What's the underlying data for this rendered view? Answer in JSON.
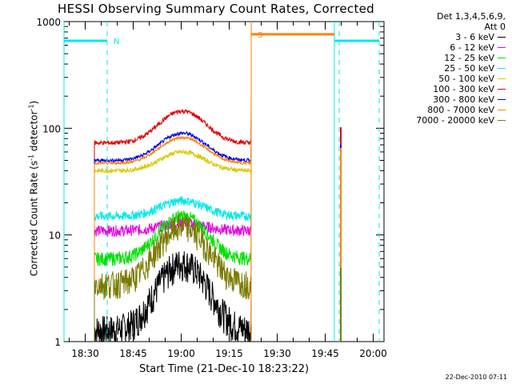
{
  "chart_data": {
    "type": "line",
    "title": "HESSI Observing Summary Count Rates, Corrected",
    "xlabel": "Start Time (21-Dec-10 18:23:22)",
    "ylabel_main": "Corrected Count Rate (s",
    "ylabel_sup1": "-1",
    "ylabel_mid": " detector",
    "ylabel_sup2": "-1",
    "ylabel_end": ")",
    "yscale": "log",
    "ylim": [
      1,
      1000
    ],
    "xlim_minutes": [
      0,
      100
    ],
    "y_tick_labels": [
      "1",
      "10",
      "100",
      "1000"
    ],
    "y_tick_values": [
      1,
      10,
      100,
      1000
    ],
    "x_tick_labels": [
      "18:30",
      "18:45",
      "19:00",
      "19:15",
      "19:30",
      "19:45",
      "20:00"
    ],
    "x_tick_minutes": [
      6.63,
      21.63,
      36.63,
      51.63,
      66.63,
      81.63,
      96.63
    ],
    "legend_header": [
      "Det 1,3,4,5,6,9,",
      "Att 0"
    ],
    "series": [
      {
        "name": "3 - 6 keV",
        "color": "#000000",
        "baseline": 1.3,
        "peak": 5.5,
        "noise": 0.35
      },
      {
        "name": "6 - 12 keV",
        "color": "#e000e0",
        "baseline": 11,
        "peak": 13,
        "noise": 0.12
      },
      {
        "name": "12 - 25 keV",
        "color": "#00e000",
        "baseline": 6,
        "peak": 15,
        "noise": 0.15
      },
      {
        "name": "25 - 50 keV",
        "color": "#00e8e8",
        "baseline": 15,
        "peak": 21,
        "noise": 0.1
      },
      {
        "name": "50 - 100 keV",
        "color": "#d8c800",
        "baseline": 40,
        "peak": 60,
        "noise": 0.05
      },
      {
        "name": "100 - 300 keV",
        "color": "#e00000",
        "baseline": 73,
        "peak": 145,
        "noise": 0.05
      },
      {
        "name": "300 - 800 keV",
        "color": "#0000e8",
        "baseline": 50,
        "peak": 90,
        "noise": 0.04
      },
      {
        "name": "800 - 7000 keV",
        "color": "#ff8000",
        "baseline": 47,
        "peak": 82,
        "noise": 0.03
      },
      {
        "name": "7000 - 20000 keV",
        "color": "#7a7a00",
        "baseline": 3.5,
        "peak": 12,
        "noise": 0.3
      }
    ],
    "data_start_minute": 9.5,
    "data_end_minute": 58.5,
    "data_peak_minute": 37,
    "flags": [
      {
        "label": "N",
        "color": "#00e8e8",
        "x_start": 0,
        "x_end": 13.5,
        "level": 660
      },
      {
        "label": "S",
        "color": "#ff8000",
        "x_start": 58.5,
        "x_end": 84.5,
        "level": 760
      },
      {
        "label": "",
        "color": "#00e8e8",
        "x_start": 84.5,
        "x_end": 98.5,
        "level": 660
      }
    ],
    "saa_dashed_lines_minutes": [
      13.5,
      86,
      98.5
    ],
    "saa_solid_lines_minutes": [
      0,
      58.5,
      84.5
    ]
  },
  "footer_timestamp": "22-Dec-2010 07:11"
}
